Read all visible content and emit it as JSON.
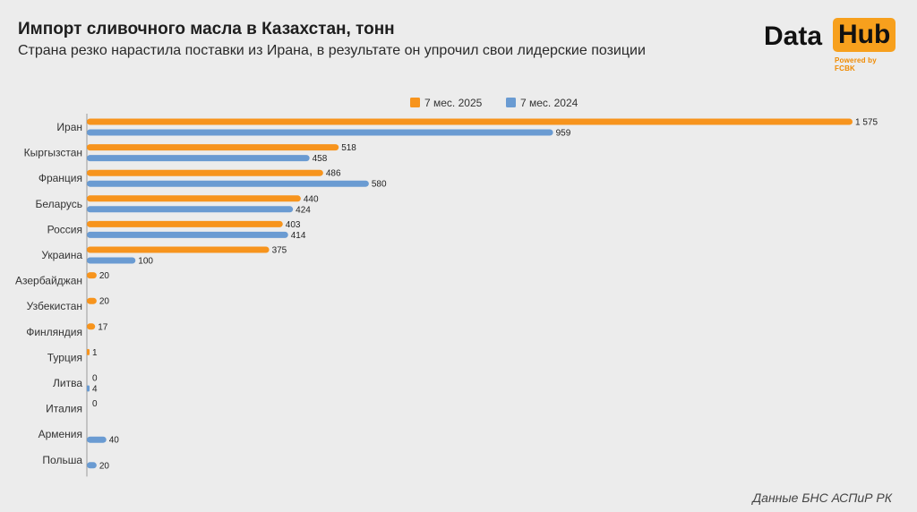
{
  "header": {
    "title": "Импорт сливочного масла в Казахстан, тонн",
    "subtitle": "Страна резко нарастила поставки из Ирана, в результате он упрочил свои лидерские позиции"
  },
  "logo": {
    "word1": "Data",
    "word2": "Hub",
    "powered": "Powered by FCBK",
    "accent": "#f7a01d"
  },
  "source": "Данные БНС АСПиР РК",
  "chart_data": {
    "type": "bar",
    "orientation": "horizontal",
    "categories": [
      "Иран",
      "Кыргызстан",
      "Франция",
      "Беларусь",
      "Россия",
      "Украина",
      "Азербайджан",
      "Узбекистан",
      "Финляндия",
      "Турция",
      "Литва",
      "Италия",
      "Армения",
      "Польша"
    ],
    "series": [
      {
        "name": "7 мес. 2025",
        "color": "#f7941d",
        "values": [
          1575,
          518,
          486,
          440,
          403,
          375,
          20,
          20,
          17,
          1,
          0,
          0,
          null,
          null
        ],
        "labels": [
          "1 575",
          "518",
          "486",
          "440",
          "403",
          "375",
          "20",
          "20",
          "17",
          "1",
          "0",
          "0",
          null,
          null
        ]
      },
      {
        "name": "7 мес. 2024",
        "color": "#6a9bd2",
        "values": [
          959,
          458,
          580,
          424,
          414,
          100,
          null,
          null,
          null,
          null,
          4,
          null,
          40,
          20
        ],
        "labels": [
          "959",
          "458",
          "580",
          "424",
          "414",
          "100",
          null,
          null,
          null,
          null,
          "4",
          null,
          "40",
          "20"
        ]
      }
    ],
    "xlim": [
      0,
      1575
    ],
    "grid": false,
    "legend_position": "top-center"
  }
}
